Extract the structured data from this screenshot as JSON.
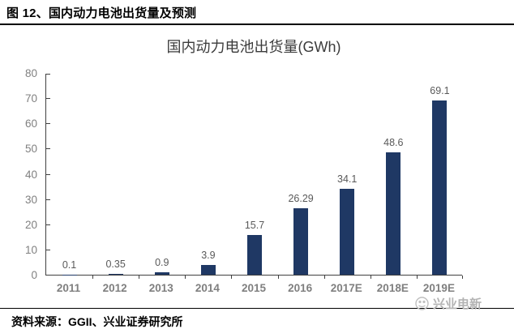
{
  "header": {
    "title": "图 12、国内动力电池出货量及预测"
  },
  "chart_data": {
    "type": "bar",
    "title": "国内动力电池出货量(GWh)",
    "categories": [
      "2011",
      "2012",
      "2013",
      "2014",
      "2015",
      "2016",
      "2017E",
      "2018E",
      "2019E"
    ],
    "values": [
      0.1,
      0.35,
      0.9,
      3.9,
      15.7,
      26.29,
      34.1,
      48.6,
      69.1
    ],
    "value_labels": [
      "0.1",
      "0.35",
      "0.9",
      "3.9",
      "15.7",
      "26.29",
      "34.1",
      "48.6",
      "69.1"
    ],
    "xlabel": "",
    "ylabel": "",
    "ylim": [
      0,
      80
    ],
    "yticks": [
      0,
      10,
      20,
      30,
      40,
      50,
      60,
      70,
      80
    ],
    "grid": false,
    "legend": null,
    "bar_color": "#1f3864",
    "axis_color": "#404040",
    "tick_label_color": "#808080",
    "value_label_color": "#595959"
  },
  "footer": {
    "source": "资料来源：GGII、兴业证券研究所"
  },
  "watermark": {
    "label": "兴业电新"
  }
}
